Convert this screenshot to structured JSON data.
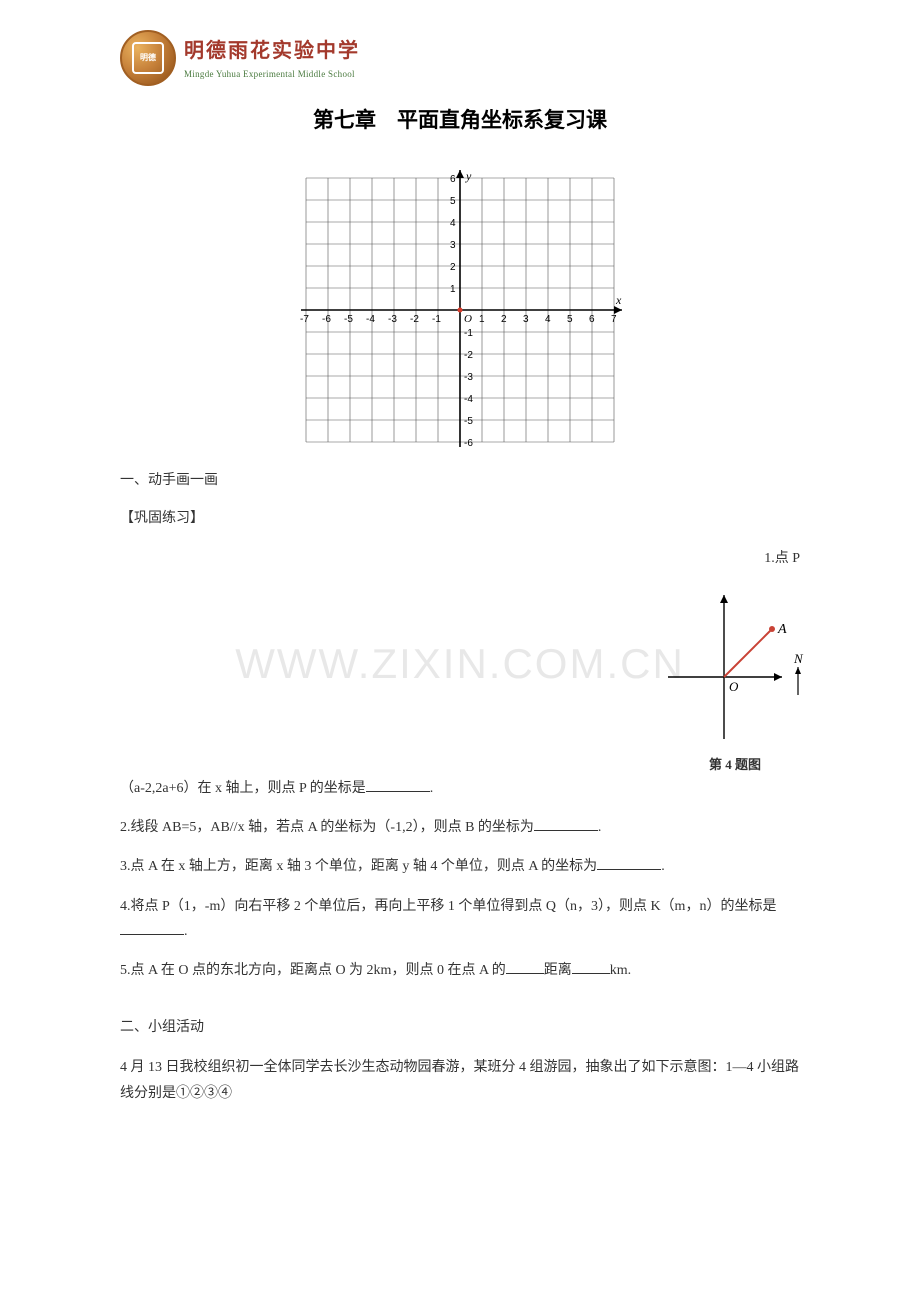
{
  "header": {
    "logo_inner": "明德",
    "school_cn": "明德雨花实验中学",
    "school_en": "Mingde Yuhua Experimental Middle School"
  },
  "title": "第七章　平面直角坐标系复习课",
  "watermark": "WWW.ZIXIN.COM.CN",
  "main_chart": {
    "x_axis_label": "x",
    "y_axis_label": "y",
    "origin": "O",
    "x_ticks": [
      -7,
      -6,
      -5,
      -4,
      -3,
      -2,
      -1,
      1,
      2,
      3,
      4,
      5,
      6,
      7
    ],
    "y_ticks": [
      -6,
      -5,
      -4,
      -3,
      -2,
      -1,
      1,
      2,
      3,
      4,
      5,
      6
    ],
    "grid_color": "#555555",
    "axis_color": "#000000",
    "background": "#ffffff",
    "cell": 22
  },
  "small_chart": {
    "point_label": "A",
    "north_label": "N",
    "origin": "O",
    "axis_color": "#000000",
    "line_color": "#c94336",
    "point_color": "#c94336",
    "caption": "第 4 题图"
  },
  "sections": {
    "s1_label": "一、动手画一画",
    "practice_label": "【巩固练习】",
    "q1_lead": "1.点 P",
    "q1_rest": "（a-2,2a+6）在 x 轴上，则点 P 的坐标是",
    "q1_end": ".",
    "q2": "2.线段 AB=5，AB//x 轴，若点 A 的坐标为（-1,2），则点 B 的坐标为",
    "q2_end": ".",
    "q3": "3.点 A 在 x 轴上方，距离 x 轴 3 个单位，距离 y 轴 4 个单位，则点 A 的坐标为",
    "q3_end": ".",
    "q4a": "4.将点 P（1，-m）向右平移 2 个单位后，再向上平移 1 个单位得到点 Q（n，3），则点 K（m，n）的坐标是",
    "q4_end": ".",
    "q5a": "5.点 A 在 O 点的东北方向，距离点 O 为 2km，则点 0 在点 A 的",
    "q5b": "距离",
    "q5c": "km.",
    "s2_label": "二、小组活动",
    "s2_text": "4 月 13 日我校组织初一全体同学去长沙生态动物园春游，某班分 4 组游园，抽象出了如下示意图：1—4 小组路线分别是①②③④"
  }
}
